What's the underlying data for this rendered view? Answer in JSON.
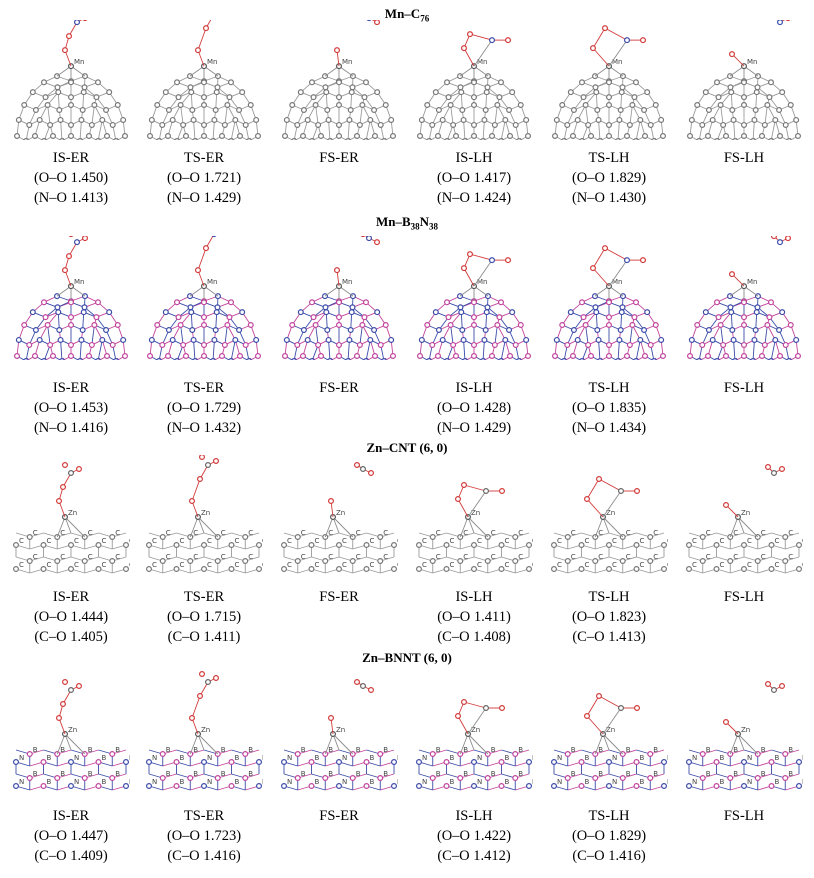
{
  "rows": [
    {
      "title_main": "Mn–C",
      "title_sub1": "76",
      "title_mid": "",
      "title_sub2": "",
      "panels": [
        {
          "state": "IS-ER",
          "line1": "(O–O 1.450)",
          "line2": "(N–O 1.413)"
        },
        {
          "state": "TS-ER",
          "line1": "(O–O 1.721)",
          "line2": "(N–O 1.429)"
        },
        {
          "state": "FS-ER",
          "line1": "",
          "line2": ""
        },
        {
          "state": "IS-LH",
          "line1": "(O–O 1.417)",
          "line2": "(N–O 1.424)"
        },
        {
          "state": "TS-LH",
          "line1": "(O–O 1.829)",
          "line2": "(N–O 1.430)"
        },
        {
          "state": "FS-LH",
          "line1": "",
          "line2": ""
        }
      ]
    },
    {
      "title_main": "Mn–B",
      "title_sub1": "38",
      "title_mid": "N",
      "title_sub2": "38",
      "panels": [
        {
          "state": "IS-ER",
          "line1": "(O–O 1.453)",
          "line2": "(N–O 1.416)"
        },
        {
          "state": "TS-ER",
          "line1": "(O–O 1.729)",
          "line2": "(N–O 1.432)"
        },
        {
          "state": "FS-ER",
          "line1": "",
          "line2": ""
        },
        {
          "state": "IS-LH",
          "line1": "(O–O 1.428)",
          "line2": "(N–O 1.429)"
        },
        {
          "state": "TS-LH",
          "line1": "(O–O 1.835)",
          "line2": "(N–O 1.434)"
        },
        {
          "state": "FS-LH",
          "line1": "",
          "line2": ""
        }
      ]
    },
    {
      "title_main": "Zn–CNT (6, 0)",
      "title_sub1": "",
      "title_mid": "",
      "title_sub2": "",
      "panels": [
        {
          "state": "IS-ER",
          "line1": "(O–O 1.444)",
          "line2": "(C–O 1.405)"
        },
        {
          "state": "TS-ER",
          "line1": "(O–O 1.715)",
          "line2": "(C–O 1.411)"
        },
        {
          "state": "FS-ER",
          "line1": "",
          "line2": ""
        },
        {
          "state": "IS-LH",
          "line1": "(O–O 1.411)",
          "line2": "(C–O 1.408)"
        },
        {
          "state": "TS-LH",
          "line1": "(O–O 1.823)",
          "line2": "(C–O 1.413)"
        },
        {
          "state": "FS-LH",
          "line1": "",
          "line2": ""
        }
      ]
    },
    {
      "title_main": "Zn–BNNT (6, 0)",
      "title_sub1": "",
      "title_mid": "",
      "title_sub2": "",
      "panels": [
        {
          "state": "IS-ER",
          "line1": "(O–O 1.447)",
          "line2": "(C–O 1.409)"
        },
        {
          "state": "TS-ER",
          "line1": "(O–O 1.723)",
          "line2": "(C–O 1.416)"
        },
        {
          "state": "FS-ER",
          "line1": "",
          "line2": ""
        },
        {
          "state": "IS-LH",
          "line1": "(O–O 1.422)",
          "line2": "(C–O 1.412)"
        },
        {
          "state": "TS-LH",
          "line1": "(O–O 1.829)",
          "line2": "(C–O 1.416)"
        },
        {
          "state": "FS-LH",
          "line1": "",
          "line2": ""
        }
      ]
    }
  ],
  "atom_labels": {
    "metal_mn": "Mn",
    "metal_zn": "Zn",
    "carbon": "C",
    "nitrogen": "N",
    "boron": "B"
  },
  "colors": {
    "bond": "#8c8c8c",
    "oxygen": "#d23a3a",
    "nitrogen": "#3b4ba8",
    "boron": "#c2449c",
    "cage": "#9a9a9a"
  }
}
